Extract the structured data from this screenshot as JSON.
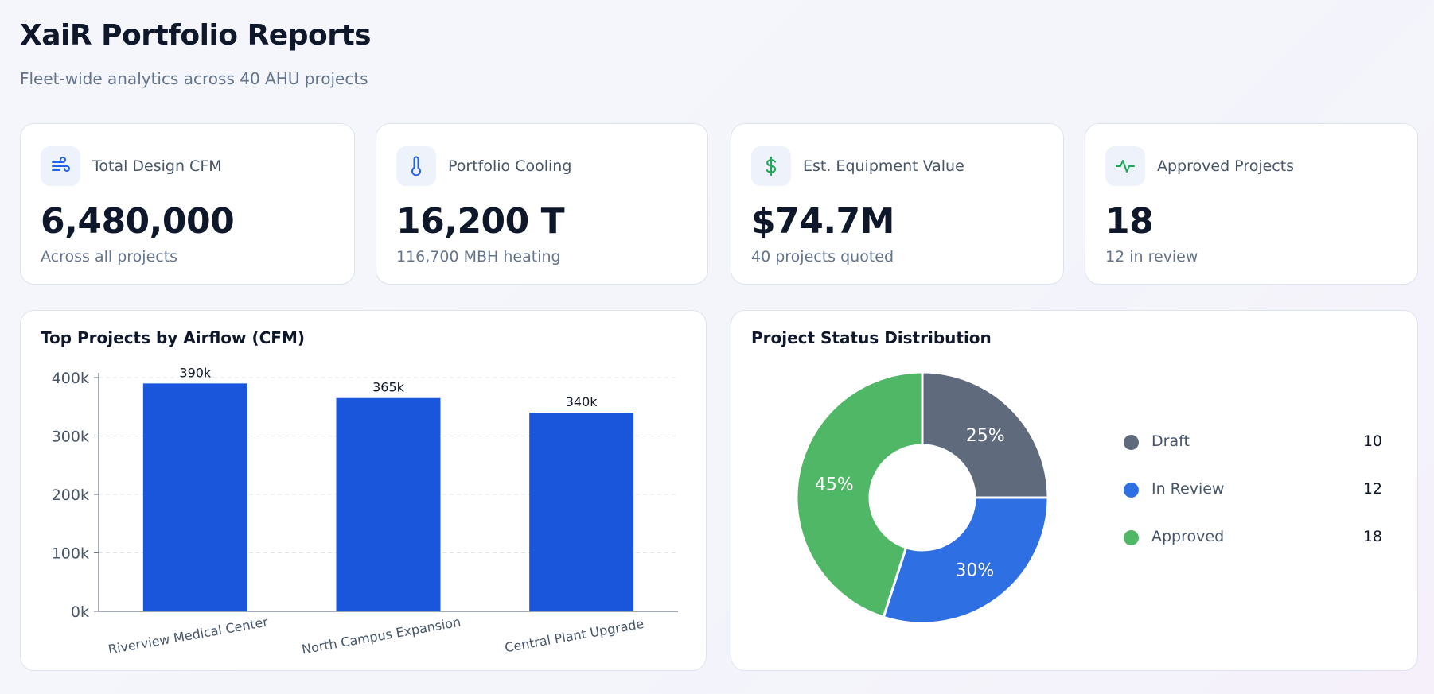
{
  "header": {
    "title": "XaiR Portfolio Reports",
    "subtitle": "Fleet-wide analytics across 40 AHU projects"
  },
  "kpis": [
    {
      "icon": "airflow-icon",
      "label": "Total Design CFM",
      "value": "6,480,000",
      "sub": "Across all projects",
      "icon_color": "#2563eb"
    },
    {
      "icon": "thermometer-icon",
      "label": "Portfolio Cooling",
      "value": "16,200 T",
      "sub": "116,700 MBH heating",
      "icon_color": "#2563eb"
    },
    {
      "icon": "dollar-icon",
      "label": "Est. Equipment Value",
      "value": "$74.7M",
      "sub": "40 projects quoted",
      "icon_color": "#22a65a"
    },
    {
      "icon": "activity-icon",
      "label": "Approved Projects",
      "value": "18",
      "sub": "12 in review",
      "icon_color": "#22a65a"
    }
  ],
  "bar_panel": {
    "title": "Top Projects by Airflow (CFM)",
    "y_tick_labels": [
      "0k",
      "100k",
      "200k",
      "300k",
      "400k"
    ],
    "data_labels": [
      "390k",
      "365k",
      "340k"
    ]
  },
  "donut_panel": {
    "title": "Project Status Distribution",
    "slice_labels": [
      "25%",
      "30%",
      "45%"
    ],
    "legend": [
      {
        "label": "Draft",
        "count": "10",
        "color": "#5f6b7d"
      },
      {
        "label": "In Review",
        "count": "12",
        "color": "#2f6fe4"
      },
      {
        "label": "Approved",
        "count": "18",
        "color": "#4fb765"
      }
    ]
  },
  "chart_data": [
    {
      "type": "bar",
      "title": "Top Projects by Airflow (CFM)",
      "categories": [
        "Riverview Medical Center",
        "North Campus Expansion",
        "Central Plant Upgrade"
      ],
      "values": [
        390000,
        365000,
        340000
      ],
      "ylim": [
        0,
        400000
      ],
      "yticks": [
        0,
        100000,
        200000,
        300000,
        400000
      ],
      "grid": true,
      "bar_color": "#1a56db"
    },
    {
      "type": "pie",
      "title": "Project Status Distribution",
      "categories": [
        "Draft",
        "In Review",
        "Approved"
      ],
      "values": [
        10,
        12,
        18
      ],
      "percent_labels": [
        "25%",
        "30%",
        "45%"
      ],
      "colors": [
        "#5f6b7d",
        "#2f6fe4",
        "#4fb765"
      ],
      "donut": true,
      "legend": "right"
    }
  ]
}
